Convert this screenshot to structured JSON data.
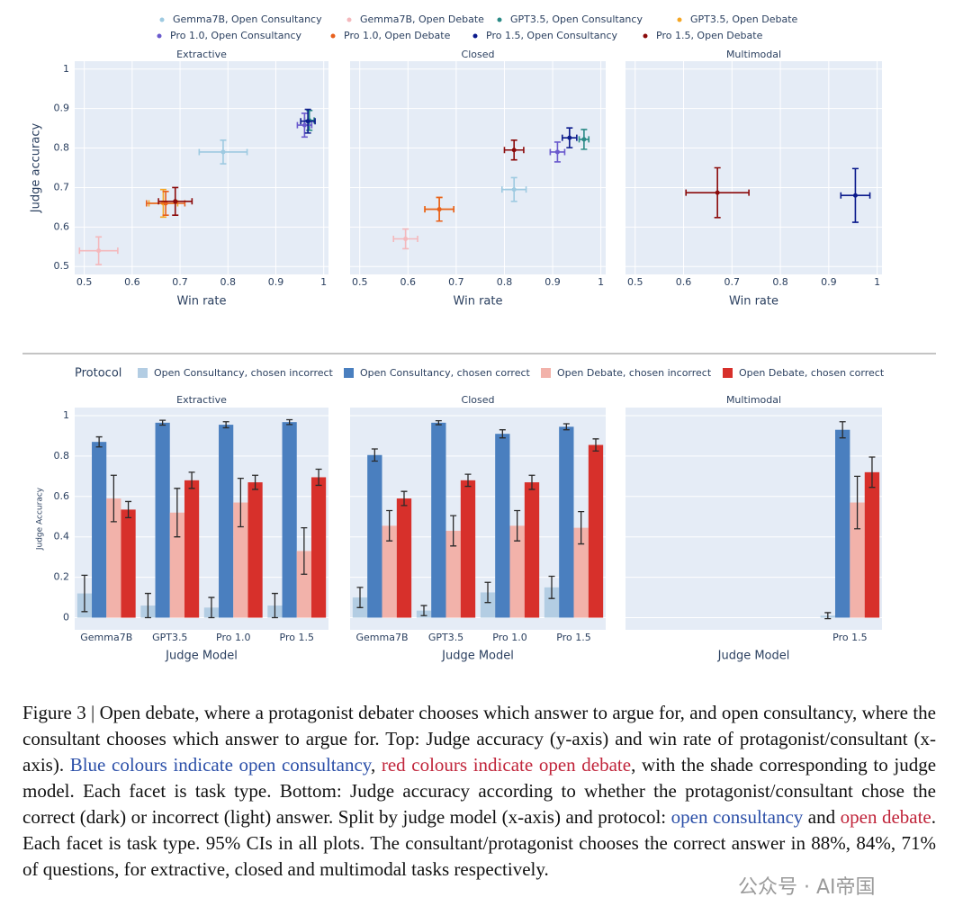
{
  "chart_data": [
    {
      "type": "scatter",
      "facets": [
        "Extractive",
        "Closed",
        "Multimodal"
      ],
      "xlabel": "Win rate",
      "ylabel": "Judge accuracy",
      "xlim": [
        0.48,
        1.01
      ],
      "ylim": [
        0.48,
        1.02
      ],
      "xticks": [
        0.5,
        0.6,
        0.7,
        0.8,
        0.9,
        1
      ],
      "yticks": [
        0.5,
        0.6,
        0.7,
        0.8,
        0.9,
        1
      ],
      "grid": true,
      "series": [
        {
          "name": "Gemma7B, Open Consultancy",
          "color": "#9ecae1",
          "x": [
            0.79,
            0.82,
            null
          ],
          "y": [
            0.79,
            0.695,
            null
          ],
          "x_err": [
            0.05,
            0.025,
            null
          ],
          "y_err": [
            0.03,
            0.03,
            null
          ]
        },
        {
          "name": "Gemma7B, Open Debate",
          "color": "#f4b8bc",
          "x": [
            0.53,
            0.595,
            null
          ],
          "y": [
            0.54,
            0.57,
            null
          ],
          "x_err": [
            0.04,
            0.025,
            null
          ],
          "y_err": [
            0.035,
            0.025,
            null
          ]
        },
        {
          "name": "GPT3.5, Open Consultancy",
          "color": "#2a8a86",
          "x": [
            0.97,
            0.965,
            null
          ],
          "y": [
            0.87,
            0.822,
            null
          ],
          "x_err": [
            0.01,
            0.01,
            null
          ],
          "y_err": [
            0.025,
            0.025,
            null
          ]
        },
        {
          "name": "GPT3.5, Open Debate",
          "color": "#f5a623",
          "x": [
            0.665,
            0.665,
            null
          ],
          "y": [
            0.66,
            0.645,
            null
          ],
          "x_err": [
            0.03,
            0.03,
            null
          ],
          "y_err": [
            0.035,
            0.03,
            null
          ]
        },
        {
          "name": "Pro 1.0, Open Consultancy",
          "color": "#6a5acd",
          "x": [
            0.96,
            0.91,
            null
          ],
          "y": [
            0.858,
            0.79,
            null
          ],
          "x_err": [
            0.015,
            0.015,
            null
          ],
          "y_err": [
            0.03,
            0.025,
            null
          ]
        },
        {
          "name": "Pro 1.0, Open Debate",
          "color": "#e8601c",
          "x": [
            0.67,
            0.665,
            null
          ],
          "y": [
            0.66,
            0.645,
            null
          ],
          "x_err": [
            0.04,
            0.03,
            null
          ],
          "y_err": [
            0.03,
            0.03,
            null
          ]
        },
        {
          "name": "Pro 1.5, Open Consultancy",
          "color": "#0a1a8c",
          "x": [
            0.967,
            0.935,
            0.955
          ],
          "y": [
            0.868,
            0.826,
            0.68
          ],
          "x_err": [
            0.015,
            0.015,
            0.03
          ],
          "y_err": [
            0.03,
            0.025,
            0.068
          ]
        },
        {
          "name": "Pro 1.5, Open Debate",
          "color": "#8b0a0a",
          "x": [
            0.69,
            0.82,
            0.67
          ],
          "y": [
            0.665,
            0.795,
            0.687
          ],
          "x_err": [
            0.035,
            0.02,
            0.065
          ],
          "y_err": [
            0.035,
            0.025,
            0.063
          ]
        }
      ]
    },
    {
      "type": "bar",
      "facets": [
        {
          "title": "Extractive",
          "categories": [
            "Gemma7B",
            "GPT3.5",
            "Pro 1.0",
            "Pro 1.5"
          ]
        },
        {
          "title": "Closed",
          "categories": [
            "Gemma7B",
            "GPT3.5",
            "Pro 1.0",
            "Pro 1.5"
          ]
        },
        {
          "title": "Multimodal",
          "categories": [
            null,
            null,
            null,
            "Pro 1.5"
          ]
        }
      ],
      "xlabel": "Judge Model",
      "ylabel": "Judge Accuracy",
      "legend_title": "Protocol",
      "ylim": [
        -0.06,
        1.04
      ],
      "yticks": [
        0,
        0.2,
        0.4,
        0.6,
        0.8,
        1
      ],
      "grid": true,
      "series": [
        {
          "name": "Open Consultancy, chosen incorrect",
          "color": "#b3cde3",
          "values": [
            [
              0.12,
              0.06,
              0.05,
              0.06
            ],
            [
              0.1,
              0.035,
              0.125,
              0.15
            ],
            [
              null,
              null,
              null,
              0.01
            ]
          ],
          "errors": [
            [
              0.09,
              0.06,
              0.05,
              0.06
            ],
            [
              0.05,
              0.025,
              0.05,
              0.055
            ],
            [
              null,
              null,
              null,
              0.015
            ]
          ]
        },
        {
          "name": "Open Consultancy, chosen correct",
          "color": "#4a7fbf",
          "values": [
            [
              0.87,
              0.965,
              0.955,
              0.968
            ],
            [
              0.805,
              0.965,
              0.91,
              0.945
            ],
            [
              null,
              null,
              null,
              0.93
            ]
          ],
          "errors": [
            [
              0.025,
              0.012,
              0.015,
              0.012
            ],
            [
              0.03,
              0.01,
              0.02,
              0.015
            ],
            [
              null,
              null,
              null,
              0.04
            ]
          ]
        },
        {
          "name": "Open Debate, chosen incorrect",
          "color": "#f2b2aa",
          "values": [
            [
              0.59,
              0.52,
              0.57,
              0.33
            ],
            [
              0.455,
              0.43,
              0.455,
              0.445
            ],
            [
              null,
              null,
              null,
              0.57
            ]
          ],
          "errors": [
            [
              0.115,
              0.12,
              0.12,
              0.115
            ],
            [
              0.075,
              0.075,
              0.075,
              0.08
            ],
            [
              null,
              null,
              null,
              0.13
            ]
          ]
        },
        {
          "name": "Open Debate, chosen correct",
          "color": "#d7302b",
          "values": [
            [
              0.535,
              0.68,
              0.67,
              0.695
            ],
            [
              0.59,
              0.68,
              0.67,
              0.855
            ],
            [
              null,
              null,
              null,
              0.72
            ]
          ],
          "errors": [
            [
              0.04,
              0.04,
              0.035,
              0.04
            ],
            [
              0.035,
              0.03,
              0.035,
              0.03
            ],
            [
              null,
              null,
              null,
              0.075
            ]
          ]
        }
      ]
    }
  ],
  "caption": [
    {
      "text": "Figure 3 | Open debate, where a protagonist debater chooses which answer to argue for, and open consultancy, where the consultant chooses which answer to argue for. Top: Judge accuracy (y-axis) and win rate of protagonist/consultant (x-axis). "
    },
    {
      "text": "Blue colours indicate open consultancy",
      "color": "#2b4fa8"
    },
    {
      "text": ", "
    },
    {
      "text": "red colours indicate open debate",
      "color": "#c0243a"
    },
    {
      "text": ", with the shade corresponding to judge model. Each facet is task type. Bottom: Judge accuracy according to whether the protagonist/consultant chose the correct (dark) or incorrect (light) answer. Split by judge model (x-axis) and protocol: "
    },
    {
      "text": "open consultancy",
      "color": "#2b4fa8"
    },
    {
      "text": " and "
    },
    {
      "text": "open debate",
      "color": "#c0243a"
    },
    {
      "text": ". Each facet is task type. 95% CIs in all plots. The consultant/protagonist chooses the correct answer in 88%, 84%, 71% of questions, for extractive, closed and multimodal tasks respectively."
    }
  ],
  "watermark": "公众号 · AI帝国"
}
